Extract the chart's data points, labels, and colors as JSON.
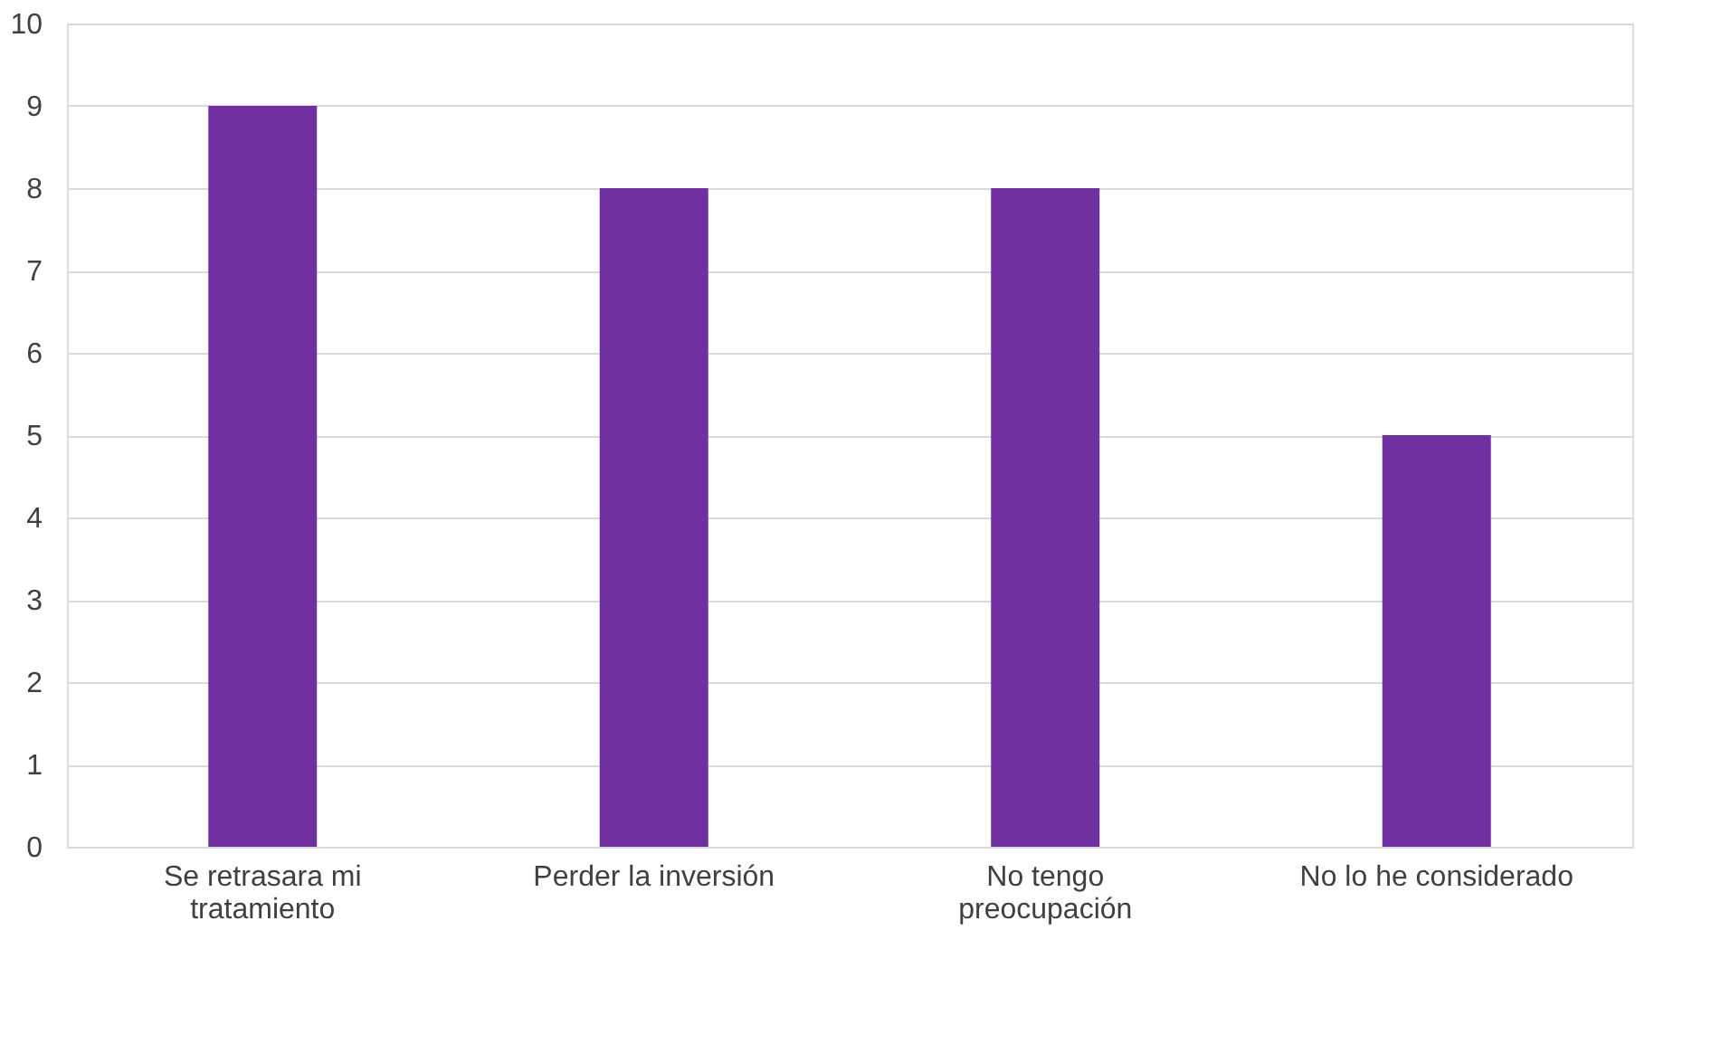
{
  "chart_data": {
    "type": "bar",
    "categories": [
      "Se retrasara mi tratamiento",
      "Perder la inversión",
      "No tengo preocupación",
      "No lo he considerado"
    ],
    "values": [
      9,
      8,
      8,
      5
    ],
    "color": "#7030a0",
    "ylim": [
      0,
      10
    ],
    "yticks": [
      0,
      1,
      2,
      3,
      4,
      5,
      6,
      7,
      8,
      9,
      10
    ],
    "grid": "y"
  }
}
